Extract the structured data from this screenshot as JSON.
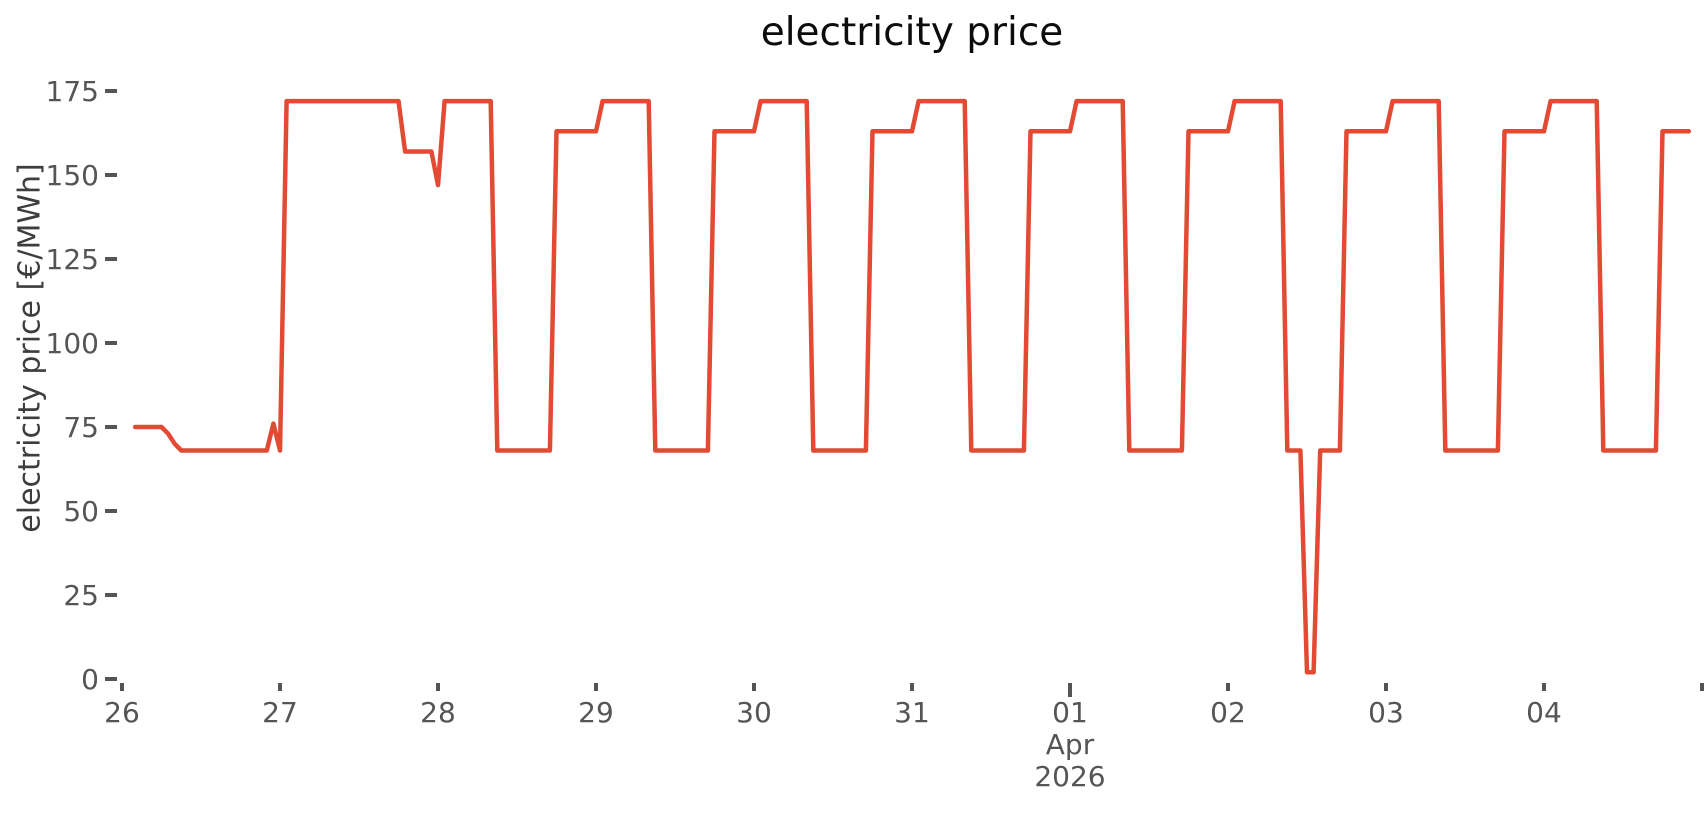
{
  "chart_data": {
    "type": "line",
    "title": "electricity price",
    "ylabel": "electricity price [€/MWh]",
    "legend": false,
    "grid": false,
    "y_range": [
      0,
      175
    ],
    "y_ticks": [
      "0",
      "25",
      "50",
      "75",
      "100",
      "125",
      "150",
      "175"
    ],
    "x_range_hours": [
      0,
      240
    ],
    "x_ticks": [
      {
        "hour": 0,
        "label": "26"
      },
      {
        "hour": 24,
        "label": "27"
      },
      {
        "hour": 48,
        "label": "28"
      },
      {
        "hour": 72,
        "label": "29"
      },
      {
        "hour": 96,
        "label": "30"
      },
      {
        "hour": 120,
        "label": "31"
      },
      {
        "hour": 144,
        "label": "01",
        "major": true
      },
      {
        "hour": 168,
        "label": "02"
      },
      {
        "hour": 192,
        "label": "03"
      },
      {
        "hour": 216,
        "label": "04"
      },
      {
        "hour": 240,
        "label": ""
      }
    ],
    "x_sub_label": {
      "at_hour": 144,
      "month": "Apr",
      "year": "2026"
    },
    "series": [
      {
        "name": "electricity price",
        "color": "#E24A33",
        "points_hour_value": [
          [
            2,
            75
          ],
          [
            6,
            75
          ],
          [
            7,
            73
          ],
          [
            8,
            70
          ],
          [
            9,
            68
          ],
          [
            22,
            68
          ],
          [
            23,
            76
          ],
          [
            24,
            68
          ],
          [
            25,
            172
          ],
          [
            42,
            172
          ],
          [
            43,
            157
          ],
          [
            47,
            157
          ],
          [
            48,
            147
          ],
          [
            49,
            172
          ],
          [
            56,
            172
          ],
          [
            57,
            68
          ],
          [
            65,
            68
          ],
          [
            66,
            163
          ],
          [
            72,
            163
          ],
          [
            73,
            172
          ],
          [
            80,
            172
          ],
          [
            81,
            68
          ],
          [
            89,
            68
          ],
          [
            90,
            163
          ],
          [
            96,
            163
          ],
          [
            97,
            172
          ],
          [
            104,
            172
          ],
          [
            105,
            68
          ],
          [
            113,
            68
          ],
          [
            114,
            163
          ],
          [
            120,
            163
          ],
          [
            121,
            172
          ],
          [
            128,
            172
          ],
          [
            129,
            68
          ],
          [
            137,
            68
          ],
          [
            138,
            163
          ],
          [
            144,
            163
          ],
          [
            145,
            172
          ],
          [
            152,
            172
          ],
          [
            153,
            68
          ],
          [
            161,
            68
          ],
          [
            162,
            163
          ],
          [
            168,
            163
          ],
          [
            169,
            172
          ],
          [
            176,
            172
          ],
          [
            177,
            68
          ],
          [
            179,
            68
          ],
          [
            180,
            2
          ],
          [
            181,
            2
          ],
          [
            182,
            68
          ],
          [
            185,
            68
          ],
          [
            186,
            163
          ],
          [
            192,
            163
          ],
          [
            193,
            172
          ],
          [
            200,
            172
          ],
          [
            201,
            68
          ],
          [
            209,
            68
          ],
          [
            210,
            163
          ],
          [
            216,
            163
          ],
          [
            217,
            172
          ],
          [
            224,
            172
          ],
          [
            225,
            68
          ],
          [
            233,
            68
          ],
          [
            234,
            163
          ],
          [
            238,
            163
          ]
        ]
      }
    ],
    "colors": {
      "line": "#E24A33",
      "tick_label": "#555555",
      "tick_mark": "#555555",
      "title": "#0c0c0c",
      "axis_label": "#3d3d3d",
      "background": "#ffffff"
    }
  }
}
